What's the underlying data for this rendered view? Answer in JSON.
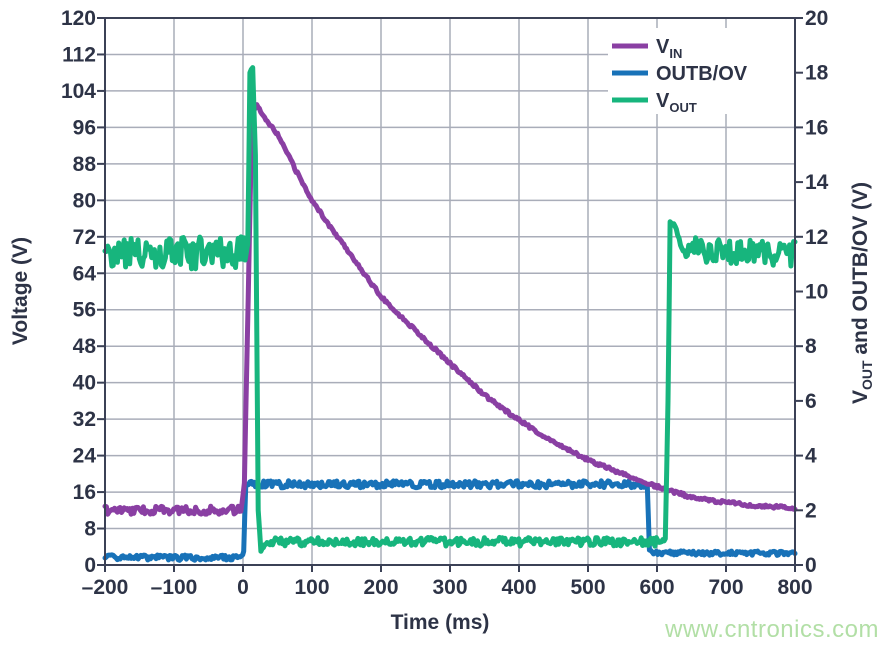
{
  "watermark": {
    "text": "www.cntronics.com",
    "color": "#b2dfa6"
  },
  "style": {
    "background": "#ffffff",
    "axis_color": "#3b4156",
    "grid_color": "#a9adb9",
    "text_color": "#2d3346",
    "legend_background": "#ffffff"
  },
  "chart_data": {
    "type": "line",
    "title": "",
    "grid": true,
    "legend_position": "top-right",
    "x_axis": {
      "label": "Time (ms)",
      "min": -200,
      "max": 800,
      "tick_step": 100
    },
    "y_axis_left": {
      "label": "Voltage (V)",
      "min": 0,
      "max": 120,
      "tick_step": 8
    },
    "y_axis_right": {
      "label_main": "V",
      "label_sub": "OUT",
      "label_rest": " and OUTB/OV (V)",
      "min": 0,
      "max": 20,
      "tick_step": 2
    },
    "series": [
      {
        "name": "V_IN",
        "legend_main": "V",
        "legend_sub": "IN",
        "axis": "left",
        "color": "#8a3fa3",
        "stroke_width": 5,
        "points_format": [
          "time_ms",
          "value_V",
          "noise_band_V"
        ],
        "points": [
          [
            -200,
            12,
            0.9
          ],
          [
            -3,
            12,
            0.9
          ],
          [
            2,
            18,
            0
          ],
          [
            13,
            99,
            0.15
          ],
          [
            20,
            100.8,
            0.3
          ],
          [
            35,
            97.5,
            0.35
          ],
          [
            50,
            94.5,
            0.35
          ],
          [
            75,
            87,
            0.35
          ],
          [
            100,
            80,
            0.35
          ],
          [
            125,
            74.5,
            0.35
          ],
          [
            150,
            69.5,
            0.35
          ],
          [
            175,
            64,
            0.35
          ],
          [
            200,
            59,
            0.35
          ],
          [
            225,
            55,
            0.35
          ],
          [
            250,
            51.5,
            0.35
          ],
          [
            275,
            47.8,
            0.35
          ],
          [
            300,
            44.2,
            0.35
          ],
          [
            325,
            40.7,
            0.35
          ],
          [
            350,
            37.3,
            0.35
          ],
          [
            375,
            34.4,
            0.35
          ],
          [
            400,
            31.8,
            0.35
          ],
          [
            425,
            29.3,
            0.35
          ],
          [
            450,
            27,
            0.35
          ],
          [
            475,
            25,
            0.35
          ],
          [
            500,
            23.1,
            0.35
          ],
          [
            525,
            21.5,
            0.35
          ],
          [
            550,
            20,
            0.35
          ],
          [
            575,
            18.6,
            0.35
          ],
          [
            600,
            17.2,
            0.35
          ],
          [
            625,
            16,
            0.35
          ],
          [
            650,
            14.9,
            0.35
          ],
          [
            675,
            14.2,
            0.35
          ],
          [
            700,
            13.7,
            0.35
          ],
          [
            725,
            13.3,
            0.35
          ],
          [
            750,
            12.9,
            0.35
          ],
          [
            775,
            12.7,
            0.35
          ],
          [
            800,
            12.5,
            0.35
          ]
        ]
      },
      {
        "name": "OUTB/OV",
        "legend_main": "OUTB/OV",
        "legend_sub": "",
        "axis": "right",
        "color": "#1872b8",
        "stroke_width": 5,
        "points_format": [
          "time_ms",
          "value_V",
          "noise_band_V"
        ],
        "points": [
          [
            -200,
            0.27,
            0.1
          ],
          [
            -2,
            0.27,
            0.1
          ],
          [
            1,
            0.5,
            0
          ],
          [
            4,
            2.95,
            0
          ],
          [
            12,
            2.95,
            0.13
          ],
          [
            300,
            2.95,
            0.13
          ],
          [
            583,
            2.95,
            0.13
          ],
          [
            586,
            2.9,
            0
          ],
          [
            589,
            0.55,
            0
          ],
          [
            595,
            0.45,
            0.08
          ],
          [
            700,
            0.43,
            0.08
          ],
          [
            800,
            0.43,
            0.08
          ]
        ]
      },
      {
        "name": "V_OUT",
        "legend_main": "V",
        "legend_sub": "OUT",
        "axis": "right",
        "color": "#17b57d",
        "stroke_width": 5,
        "points_format": [
          "time_ms",
          "value_V",
          "noise_band_V"
        ],
        "points": [
          [
            -200,
            11.4,
            0.6
          ],
          [
            3,
            11.4,
            0.6
          ],
          [
            7,
            11.7,
            0.15
          ],
          [
            10,
            18.0,
            0
          ],
          [
            14,
            18.2,
            0.08
          ],
          [
            18,
            15,
            0
          ],
          [
            22,
            2,
            0
          ],
          [
            26,
            0.5,
            0
          ],
          [
            33,
            0.85,
            0.16
          ],
          [
            300,
            0.85,
            0.16
          ],
          [
            605,
            0.85,
            0.16
          ],
          [
            612,
            0.95,
            0.05
          ],
          [
            616,
            6,
            0
          ],
          [
            619,
            12.55,
            0
          ],
          [
            628,
            12.35,
            0.12
          ],
          [
            638,
            11.35,
            0.2
          ],
          [
            652,
            11.5,
            0.5
          ],
          [
            725,
            11.45,
            0.5
          ],
          [
            800,
            11.4,
            0.5
          ]
        ]
      }
    ]
  }
}
